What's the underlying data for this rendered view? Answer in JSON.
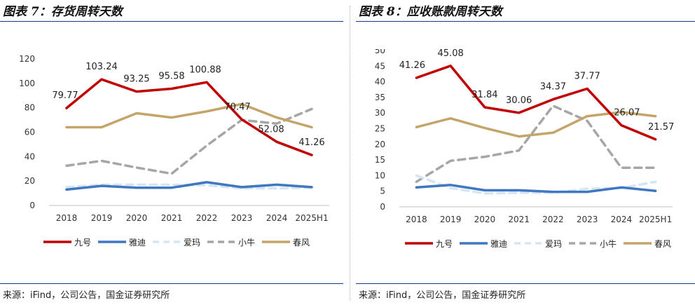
{
  "source_text": "来源：iFind，公司公告，国金证券研究所",
  "colors": {
    "九号": "#c00000",
    "雅迪": "#3f78c0",
    "爱玛": "#d5e5f4",
    "小牛": "#a6a6a6",
    "春风": "#c5a46a"
  },
  "chart_data": [
    {
      "type": "line",
      "title": "图表 7：存货周转天数",
      "x": [
        "2018",
        "2019",
        "2020",
        "2021",
        "2022",
        "2023",
        "2024",
        "2025H1"
      ],
      "ylim": [
        0,
        120
      ],
      "yticks": [
        0,
        20,
        40,
        60,
        80,
        100,
        120
      ],
      "legend_position": "bottom",
      "grid": false,
      "series": [
        {
          "name": "九号",
          "values": [
            79.77,
            103.24,
            93.25,
            95.58,
            100.88,
            70.47,
            52.08,
            41.26
          ],
          "style": "solid"
        },
        {
          "name": "雅迪",
          "values": [
            13,
            16,
            14.5,
            14.5,
            19,
            15,
            17,
            15
          ],
          "style": "solid"
        },
        {
          "name": "爱玛",
          "values": [
            15,
            17,
            17,
            17,
            16.5,
            14,
            14,
            14.5
          ],
          "style": "dashed"
        },
        {
          "name": "小牛",
          "values": [
            32.5,
            36.5,
            31,
            26,
            49,
            70,
            67,
            79
          ],
          "style": "dashed"
        },
        {
          "name": "春风",
          "values": [
            64,
            64,
            75.5,
            72,
            77,
            83,
            72,
            64
          ],
          "style": "solid"
        }
      ],
      "data_labels": [
        {
          "text": "79.77"
        },
        {
          "text": "103.24"
        },
        {
          "text": "93.25"
        },
        {
          "text": "95.58"
        },
        {
          "text": "100.88"
        },
        {
          "text": "70.47"
        },
        {
          "text": "52.08"
        },
        {
          "text": "41.26"
        }
      ]
    },
    {
      "type": "line",
      "title": "图表 8：应收账款周转天数",
      "x": [
        "2018",
        "2019",
        "2020",
        "2021",
        "2022",
        "2023",
        "2024",
        "2025H1"
      ],
      "ylim": [
        0,
        50
      ],
      "yticks": [
        0,
        5,
        10,
        15,
        20,
        25,
        30,
        35,
        40,
        45,
        50
      ],
      "legend_position": "bottom",
      "grid": false,
      "series": [
        {
          "name": "九号",
          "values": [
            41.26,
            45.08,
            31.84,
            30.06,
            34.37,
            37.77,
            26.07,
            21.57
          ],
          "style": "solid"
        },
        {
          "name": "雅迪",
          "values": [
            6.2,
            7,
            5.3,
            5.3,
            4.8,
            4.8,
            6.2,
            5.1
          ],
          "style": "solid"
        },
        {
          "name": "爱玛",
          "values": [
            10,
            6,
            4.3,
            4.5,
            4.5,
            5.8,
            6,
            8
          ],
          "style": "dashed"
        },
        {
          "name": "小牛",
          "values": [
            8,
            14.7,
            16,
            18,
            32.3,
            27.5,
            12.5,
            12.5
          ],
          "style": "dashed"
        },
        {
          "name": "春风",
          "values": [
            25.5,
            28.3,
            25.2,
            22.5,
            23.7,
            29,
            30.3,
            29
          ],
          "style": "solid"
        }
      ],
      "data_labels": [
        {
          "text": "41.26"
        },
        {
          "text": "45.08"
        },
        {
          "text": "31.84"
        },
        {
          "text": "30.06"
        },
        {
          "text": "34.37"
        },
        {
          "text": "37.77"
        },
        {
          "text": "26.07"
        },
        {
          "text": "21.57"
        }
      ]
    }
  ]
}
